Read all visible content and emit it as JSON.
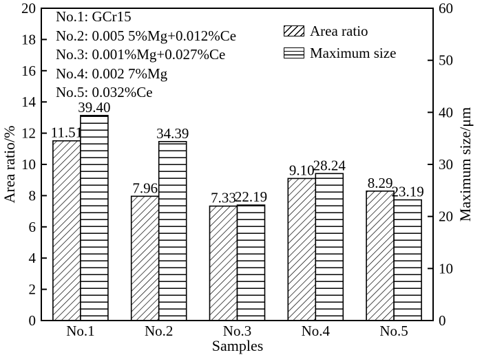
{
  "colors": {
    "foreground": "#000000",
    "background": "#ffffff"
  },
  "chart_data": {
    "type": "bar",
    "categories": [
      "No.1",
      "No.2",
      "No.3",
      "No.4",
      "No.5"
    ],
    "series": [
      {
        "name": "Area ratio",
        "axis": "left",
        "pattern": "diagonal-hatch",
        "values": [
          11.51,
          7.96,
          7.33,
          9.1,
          8.29
        ]
      },
      {
        "name": "Maximum size",
        "axis": "right",
        "pattern": "horizontal-lines",
        "values": [
          39.4,
          34.39,
          22.19,
          28.24,
          23.19
        ]
      }
    ],
    "data_labels": {
      "visible": true,
      "decimals": 2
    },
    "xlabel": "Samples",
    "left_axis": {
      "label": "Area ratio/%",
      "min": 0,
      "max": 20,
      "tick_step": 2
    },
    "right_axis": {
      "label": "Maximum size/μm",
      "min": 0,
      "max": 60,
      "tick_step": 10
    },
    "grid": false,
    "legend_position": "top-right",
    "annotation_lines": [
      "No.1: GCr15",
      "No.2: 0.005 5%Mg+0.012%Ce",
      "No.3: 0.001%Mg+0.027%Ce",
      "No.4: 0.002 7%Mg",
      "No.5: 0.032%Ce"
    ]
  }
}
